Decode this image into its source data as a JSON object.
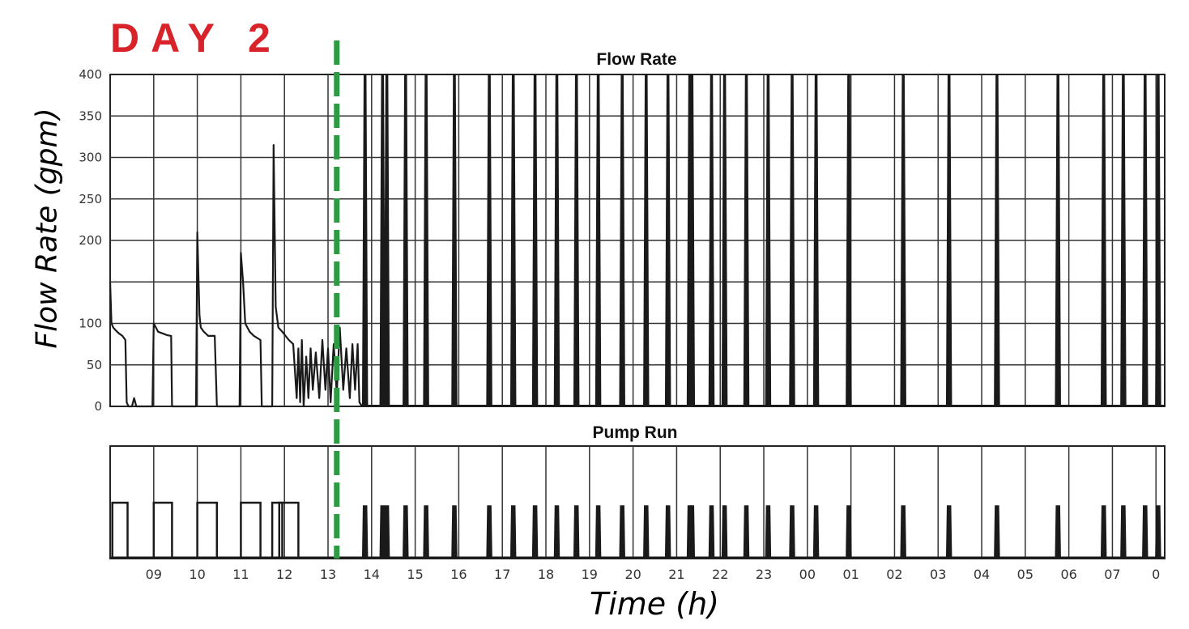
{
  "annotation": {
    "day_label": "DAY 2",
    "divider_color": "#2e9a44",
    "day_color": "#d8232a"
  },
  "chart_data": [
    {
      "type": "line",
      "title": "Flow Rate",
      "ylabel": "Flow Rate (gpm)",
      "xlabel": "Time (h)",
      "ylim": [
        0,
        400
      ],
      "yticks": [
        0,
        50,
        100,
        200,
        250,
        300,
        350,
        400
      ],
      "xlim": [
        8,
        32.2
      ],
      "grid": true,
      "day_marker_x": 13.2,
      "series": [
        {
          "x": [
            8.0,
            8.03,
            8.07,
            8.12,
            8.2,
            8.28,
            8.35,
            8.38,
            8.42,
            8.5,
            8.55,
            8.6,
            8.66,
            8.7,
            8.9,
            8.97,
            9.0,
            9.05,
            9.1,
            9.2,
            9.3,
            9.4,
            9.42,
            9.7,
            9.97,
            10.0,
            10.05,
            10.08,
            10.15,
            10.25,
            10.4,
            10.45,
            10.47,
            10.9,
            10.97,
            11.0,
            11.05,
            11.1,
            11.2,
            11.3,
            11.45,
            11.48,
            11.5,
            11.65,
            11.72,
            11.75,
            11.8,
            11.86,
            11.95,
            12.1,
            12.2,
            12.28,
            12.32,
            12.36,
            12.4,
            12.44,
            12.5,
            12.55,
            12.6,
            12.65,
            12.72,
            12.8,
            12.87,
            12.94,
            13.0,
            13.06,
            13.13,
            13.2,
            13.27,
            13.35,
            13.42,
            13.5,
            13.56,
            13.62,
            13.68,
            13.72,
            13.78
          ],
          "y": [
            150,
            100,
            95,
            92,
            88,
            85,
            80,
            5,
            0,
            0,
            10,
            0,
            0,
            0,
            0,
            0,
            100,
            95,
            90,
            88,
            86,
            85,
            0,
            0,
            0,
            210,
            110,
            95,
            90,
            85,
            85,
            0,
            0,
            0,
            0,
            185,
            150,
            100,
            90,
            85,
            80,
            0,
            0,
            0,
            0,
            315,
            120,
            95,
            90,
            80,
            75,
            10,
            70,
            5,
            80,
            0,
            60,
            10,
            70,
            20,
            65,
            10,
            80,
            20,
            70,
            5,
            75,
            15,
            95,
            20,
            70,
            10,
            75,
            20,
            75,
            5,
            0
          ]
        }
      ],
      "spikes_above_400_at": [
        13.85,
        14.25,
        14.35,
        14.78,
        15.25,
        15.9,
        16.7,
        17.25,
        17.75,
        18.25,
        18.7,
        19.2,
        19.75,
        20.3,
        20.8,
        21.3,
        21.35,
        21.8,
        22.1,
        22.6,
        23.1,
        23.65,
        24.2,
        24.95,
        26.2,
        27.25,
        28.35,
        29.75,
        30.8,
        31.25,
        31.75,
        32.05
      ]
    },
    {
      "type": "line",
      "title": "Pump Run",
      "xticks": [
        "09",
        "10",
        "11",
        "12",
        "13",
        "14",
        "15",
        "16",
        "17",
        "18",
        "19",
        "20",
        "21",
        "22",
        "23",
        "00",
        "01",
        "02",
        "03",
        "04",
        "05",
        "06",
        "07",
        "0"
      ],
      "xtick_hours": [
        9,
        10,
        11,
        12,
        13,
        14,
        15,
        16,
        17,
        18,
        19,
        20,
        21,
        22,
        23,
        24,
        25,
        26,
        27,
        28,
        29,
        30,
        31,
        32
      ],
      "grid": true,
      "states": [
        0,
        1
      ],
      "on_intervals": [
        [
          8.05,
          8.4
        ],
        [
          9.0,
          9.42
        ],
        [
          10.0,
          10.45
        ],
        [
          11.0,
          11.45
        ],
        [
          11.72,
          11.95
        ],
        [
          11.88,
          12.32
        ]
      ],
      "short_pulses_at": [
        13.85,
        14.25,
        14.35,
        14.78,
        15.25,
        15.9,
        16.7,
        17.25,
        17.75,
        18.25,
        18.7,
        19.2,
        19.75,
        20.3,
        20.8,
        21.3,
        21.35,
        21.8,
        22.1,
        22.6,
        23.1,
        23.65,
        24.2,
        24.95,
        26.2,
        27.25,
        28.35,
        29.75,
        30.8,
        31.25,
        31.75,
        32.05
      ]
    }
  ]
}
